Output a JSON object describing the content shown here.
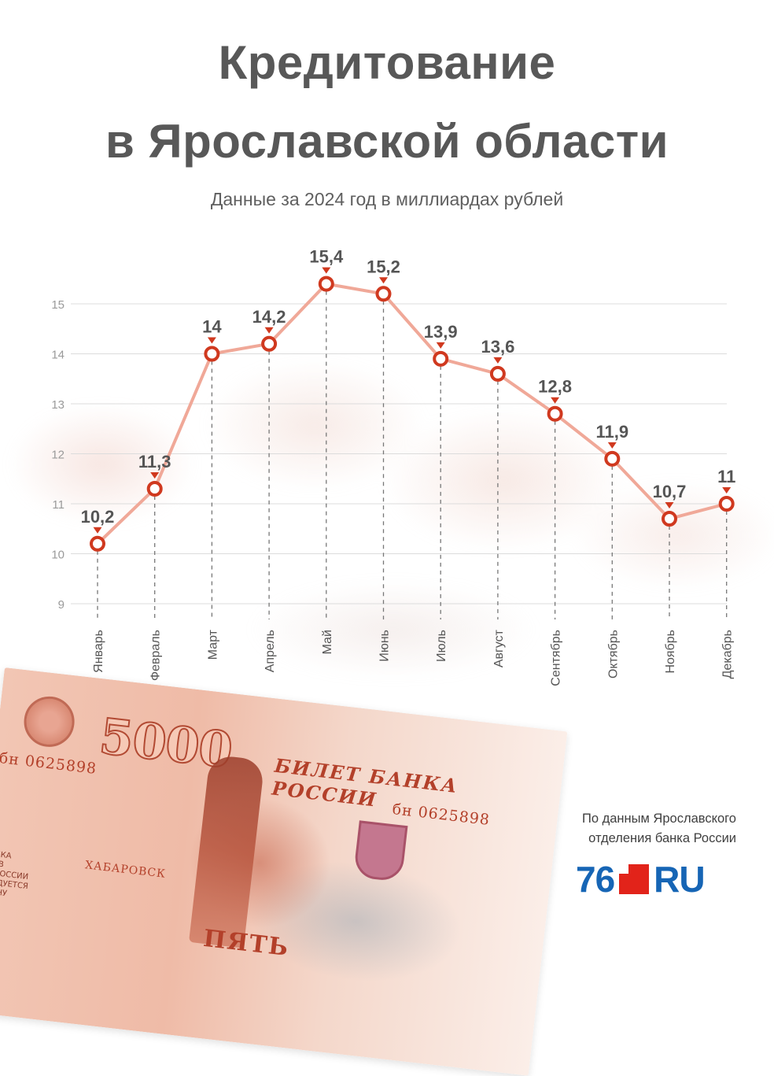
{
  "header": {
    "title_line1": "Кредитование",
    "title_line2": "в Ярославской области",
    "subtitle": "Данные за 2024 год в миллиардах рублей"
  },
  "chart_data": {
    "type": "line",
    "title": "Кредитование в Ярославской области",
    "subtitle": "Данные за 2024 год в миллиардах рублей",
    "xlabel": "",
    "ylabel": "",
    "categories": [
      "Январь",
      "Февраль",
      "Март",
      "Апрель",
      "Май",
      "Июнь",
      "Июль",
      "Август",
      "Сентябрь",
      "Октябрь",
      "Ноябрь",
      "Декабрь"
    ],
    "series": [
      {
        "values": [
          10.2,
          11.3,
          14,
          14.2,
          15.4,
          15.2,
          13.9,
          13.6,
          12.8,
          11.9,
          10.7,
          11
        ],
        "labels": [
          "10,2",
          "11,3",
          "14",
          "14,2",
          "15,4",
          "15,2",
          "13,9",
          "13,6",
          "12,8",
          "11,9",
          "10,7",
          "11"
        ]
      }
    ],
    "yticks": [
      9,
      10,
      11,
      12,
      13,
      14,
      15
    ],
    "ylim": [
      8.9,
      15.4
    ],
    "grid": true,
    "line_color": "#f0a898",
    "marker_color": "#d0391f",
    "drop_line_color": "#777777"
  },
  "banknote": {
    "value": "5000",
    "bank_text": "БИЛЕТ БАНКА РОССИИ",
    "serial": "бн 0625898",
    "plaque": "ХАБАРОВСК",
    "word": "ПЯТЬ",
    "small_text": [
      "ДЕЛКА",
      "ЕТОВ",
      "КА РОССИИ",
      "СЛЕДУЕТСЯ",
      "АКОНУ"
    ]
  },
  "footer": {
    "source_line1": "По данным Ярославского",
    "source_line2": "отделения банка России",
    "logo_number": "76",
    "logo_suffix": "RU",
    "logo_colors": {
      "blue": "#1665b5",
      "red": "#e2231a"
    }
  }
}
